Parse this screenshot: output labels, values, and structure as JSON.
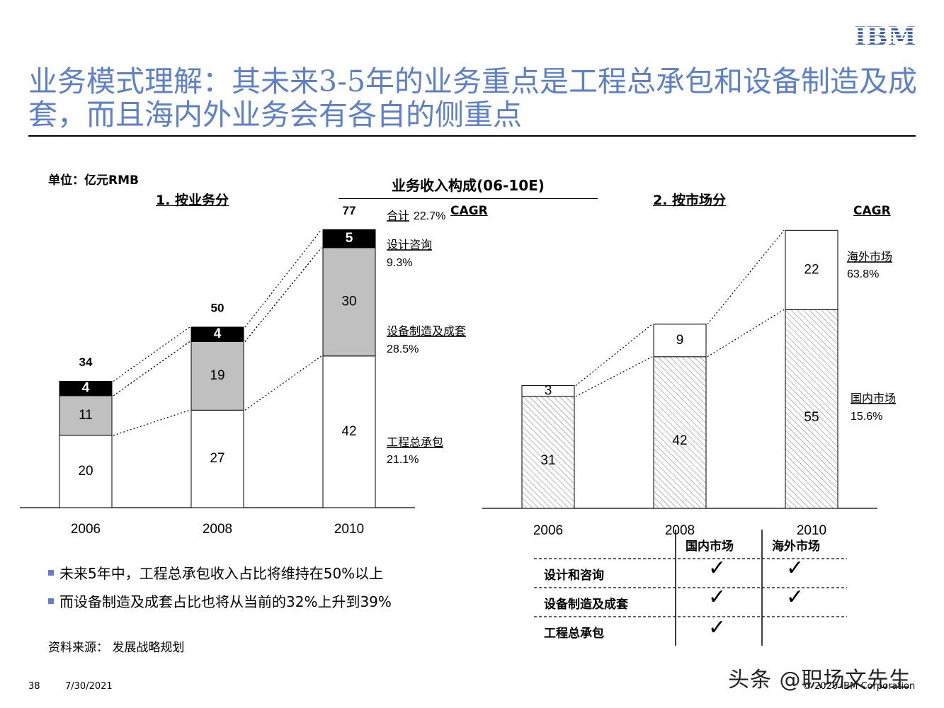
{
  "header": {
    "logo_text": "IBM",
    "title": "业务模式理解：其未来3-5年的业务重点是工程总承包和设备制造及成套，而且海内外业务会有各自的侧重点"
  },
  "unit_label": "单位：亿元RMB",
  "charts_title": "业务收入构成(06-10E)",
  "chart_data": [
    {
      "type": "bar",
      "stacked": true,
      "title": "1. 按业务分",
      "categories": [
        "2006",
        "2008",
        "2010"
      ],
      "series": [
        {
          "name": "工程总承包",
          "values": [
            20,
            27,
            42
          ],
          "color": "#ffffff",
          "cagr": "21.1%"
        },
        {
          "name": "设备制造及成套",
          "values": [
            11,
            19,
            30
          ],
          "color": "#c0c0c0",
          "cagr": "28.5%"
        },
        {
          "name": "设计咨询",
          "values": [
            4,
            4,
            5
          ],
          "color": "#000000",
          "cagr": "9.3%"
        }
      ],
      "totals": [
        34,
        50,
        77
      ],
      "total_label": "合计",
      "total_cagr": "22.7%",
      "cagr_label": "CAGR",
      "ylim": [
        0,
        80
      ],
      "grid": false
    },
    {
      "type": "bar",
      "stacked": true,
      "title": "2. 按市场分",
      "categories": [
        "2006",
        "2008",
        "2010"
      ],
      "series": [
        {
          "name": "国内市场",
          "values": [
            31,
            42,
            55
          ],
          "pattern": "hatched",
          "cagr": "15.6%"
        },
        {
          "name": "海外市场",
          "values": [
            3,
            9,
            22
          ],
          "color": "#ffffff",
          "cagr": "63.8%"
        }
      ],
      "cagr_label": "CAGR",
      "ylim": [
        0,
        80
      ],
      "grid": false
    }
  ],
  "bullets": [
    "未来5年中，工程总承包收入占比将维持在50%以上",
    "而设备制造及成套占比也将从当前的32%上升到39%"
  ],
  "matrix": {
    "columns": [
      "国内市场",
      "海外市场"
    ],
    "rows": [
      {
        "label": "设计和咨询",
        "checks": [
          true,
          true
        ]
      },
      {
        "label": "设备制造及成套",
        "checks": [
          true,
          true
        ]
      },
      {
        "label": "工程总承包",
        "checks": [
          true,
          false
        ]
      }
    ],
    "check_glyph": "✓"
  },
  "source": "资料来源： 发展战略规划",
  "footer": {
    "page": "38",
    "date": "7/30/2021",
    "copyright": "© 2020 IBM Corporation"
  },
  "watermark": "头条 @职场文先生",
  "colors": {
    "title": "#5d80c6",
    "bullet": "#5d80c6",
    "engineering": "#ffffff",
    "equipment": "#c0c0c0",
    "design": "#000000"
  }
}
